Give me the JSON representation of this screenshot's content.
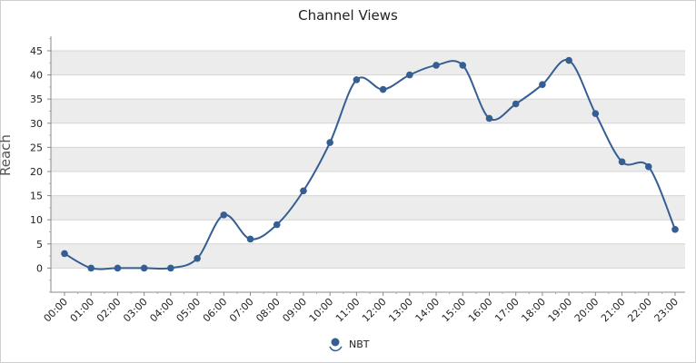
{
  "chart_data": {
    "type": "line",
    "title": "Channel Views",
    "ylabel": "Reach",
    "xlabel": "",
    "ylim": [
      -5,
      48
    ],
    "yticks": [
      0,
      5,
      10,
      15,
      20,
      25,
      30,
      35,
      40,
      45
    ],
    "categories": [
      "00:00",
      "01:00",
      "02:00",
      "03:00",
      "04:00",
      "05:00",
      "06:00",
      "07:00",
      "08:00",
      "09:00",
      "10:00",
      "11:00",
      "12:00",
      "13:00",
      "14:00",
      "15:00",
      "16:00",
      "17:00",
      "18:00",
      "19:00",
      "20:00",
      "21:00",
      "22:00",
      "23:00"
    ],
    "series": [
      {
        "name": "NBT",
        "color": "#355e93",
        "values": [
          3,
          0,
          0,
          0,
          0,
          2,
          11,
          6,
          9,
          16,
          26,
          39,
          37,
          40,
          42,
          42,
          31,
          34,
          38,
          43,
          32,
          22,
          21,
          8
        ]
      }
    ],
    "grid": true,
    "band_colors": [
      "#ececec",
      "#ffffff"
    ],
    "legend_position": "bottom-center"
  }
}
